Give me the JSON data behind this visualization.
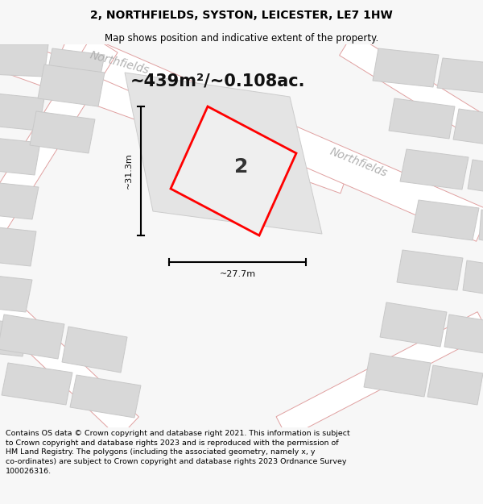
{
  "title": "2, NORTHFIELDS, SYSTON, LEICESTER, LE7 1HW",
  "subtitle": "Map shows position and indicative extent of the property.",
  "area_text": "~439m²/~0.108ac.",
  "label_number": "2",
  "dim_width": "~27.7m",
  "dim_height": "~31.3m",
  "street_label1": "Northfields",
  "street_label2": "Northfields",
  "footer": "Contains OS data © Crown copyright and database right 2021. This information is subject to Crown copyright and database rights 2023 and is reproduced with the permission of HM Land Registry. The polygons (including the associated geometry, namely x, y co-ordinates) are subject to Crown copyright and database rights 2023 Ordnance Survey 100026316.",
  "bg_color": "#f7f7f7",
  "map_bg": "#efefef",
  "road_color": "#ffffff",
  "road_outline_color": "#e0a0a0",
  "building_color": "#d8d8d8",
  "building_outline": "#c8c8c8",
  "plot_color": "#ff0000",
  "plot_fill": "#efefef",
  "dim_color": "#000000",
  "street_label_color": "#b0b0b0",
  "title_color": "#000000",
  "footer_color": "#000000",
  "title_fontsize": 10,
  "subtitle_fontsize": 8.5,
  "area_fontsize": 15,
  "label_fontsize": 18,
  "dim_fontsize": 8,
  "street_fontsize": 10,
  "footer_fontsize": 6.8
}
